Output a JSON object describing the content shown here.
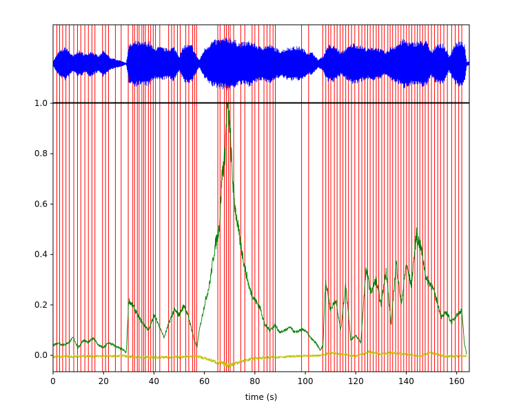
{
  "figure": {
    "xlabel": "time (s)"
  },
  "colors": {
    "waveform": "#0000ff",
    "markers": "#ff0000",
    "green_series": "#008000",
    "yellow_series": "#bfbf00",
    "axes": "#000000"
  },
  "chart_data": [
    {
      "type": "line",
      "title": "",
      "xlabel": "",
      "ylabel": "",
      "xlim": [
        0,
        165
      ],
      "ylim": [
        -1,
        1
      ],
      "yticks": false,
      "series": [
        {
          "color": "#0000ff",
          "values": "envelope",
          "envelope": [
            [
              0,
              0.06
            ],
            [
              2,
              0.3
            ],
            [
              5,
              0.45
            ],
            [
              8,
              0.2
            ],
            [
              10,
              0.35
            ],
            [
              13,
              0.25
            ],
            [
              15,
              0.35
            ],
            [
              18,
              0.2
            ],
            [
              20,
              0.35
            ],
            [
              23,
              0.15
            ],
            [
              26,
              0.1
            ],
            [
              28,
              0.05
            ],
            [
              29,
              0.02
            ],
            [
              30,
              0.5
            ],
            [
              33,
              0.6
            ],
            [
              35,
              0.55
            ],
            [
              38,
              0.6
            ],
            [
              40,
              0.4
            ],
            [
              42,
              0.45
            ],
            [
              45,
              0.4
            ],
            [
              48,
              0.45
            ],
            [
              50,
              0.2
            ],
            [
              52,
              0.5
            ],
            [
              55,
              0.5
            ],
            [
              57,
              0.2
            ],
            [
              58,
              0.1
            ],
            [
              60,
              0.4
            ],
            [
              63,
              0.6
            ],
            [
              66,
              0.65
            ],
            [
              70,
              0.7
            ],
            [
              74,
              0.55
            ],
            [
              78,
              0.6
            ],
            [
              82,
              0.45
            ],
            [
              86,
              0.5
            ],
            [
              90,
              0.35
            ],
            [
              94,
              0.45
            ],
            [
              98,
              0.45
            ],
            [
              101,
              0.3
            ],
            [
              103,
              0.3
            ],
            [
              105,
              0.1
            ],
            [
              107,
              0.2
            ],
            [
              109,
              0.5
            ],
            [
              112,
              0.45
            ],
            [
              114,
              0.3
            ],
            [
              117,
              0.45
            ],
            [
              119,
              0.55
            ],
            [
              121,
              0.5
            ],
            [
              125,
              0.4
            ],
            [
              128,
              0.45
            ],
            [
              132,
              0.3
            ],
            [
              134,
              0.45
            ],
            [
              136,
              0.5
            ],
            [
              139,
              0.65
            ],
            [
              142,
              0.55
            ],
            [
              145,
              0.6
            ],
            [
              148,
              0.6
            ],
            [
              150,
              0.3
            ],
            [
              152,
              0.55
            ],
            [
              155,
              0.5
            ],
            [
              157,
              0.2
            ],
            [
              159,
              0.5
            ],
            [
              161,
              0.6
            ],
            [
              163,
              0.55
            ],
            [
              164,
              0.05
            ]
          ]
        }
      ],
      "markers": [
        1.5,
        2.6,
        3.8,
        5.1,
        6.4,
        8.2,
        9.7,
        11.0,
        12.6,
        14.0,
        15.4,
        16.6,
        19.6,
        20.8,
        22.0,
        24.7,
        27.0,
        29.8,
        31.6,
        32.3,
        33.4,
        34.1,
        35.2,
        35.9,
        36.6,
        37.8,
        38.7,
        39.7,
        40.6,
        42.3,
        45.8,
        47.0,
        48.0,
        49.3,
        50.4,
        52.6,
        53.8,
        55.3,
        56.1,
        56.9,
        65.3,
        66.2,
        67.9,
        68.7,
        69.5,
        70.2,
        71.6,
        74.4,
        76.0,
        78.9,
        80.0,
        81.5,
        83.6,
        84.8,
        86.0,
        87.2,
        88.1,
        98.5,
        101.3,
        106.9,
        108.1,
        109.2,
        110.1,
        111.5,
        112.6,
        113.8,
        114.9,
        116.0,
        117.1,
        118.3,
        119.6,
        121.2,
        122.4,
        123.6,
        124.7,
        125.7,
        126.9,
        128.1,
        129.1,
        130.3,
        131.3,
        132.7,
        133.6,
        134.6,
        135.8,
        136.8,
        137.9,
        139.0,
        140.1,
        141.1,
        142.2,
        143.4,
        144.4,
        145.4,
        146.5,
        147.5,
        148.7,
        150.0,
        151.2,
        152.5,
        153.6,
        154.9,
        156.3,
        158.0,
        159.4,
        160.8,
        162.0
      ]
    },
    {
      "type": "line",
      "title": "",
      "xlabel": "time (s)",
      "ylabel": "",
      "xlim": [
        0,
        165
      ],
      "ylim": [
        -0.065,
        1.0
      ],
      "xticks": [
        0,
        20,
        40,
        60,
        80,
        100,
        120,
        140,
        160
      ],
      "yticks": [
        0.0,
        0.2,
        0.4,
        0.6,
        0.8,
        1.0
      ],
      "series": [
        {
          "color": "#008000",
          "values": [
            [
              0,
              0.04
            ],
            [
              2,
              0.05
            ],
            [
              4,
              0.04
            ],
            [
              6,
              0.05
            ],
            [
              8,
              0.07
            ],
            [
              10,
              0.03
            ],
            [
              12,
              0.06
            ],
            [
              14,
              0.05
            ],
            [
              16,
              0.07
            ],
            [
              18,
              0.04
            ],
            [
              20,
              0.03
            ],
            [
              22,
              0.05
            ],
            [
              24,
              0.04
            ],
            [
              26,
              0.03
            ],
            [
              28,
              0.02
            ],
            [
              29,
              0.01
            ],
            [
              30,
              0.22
            ],
            [
              32,
              0.19
            ],
            [
              34,
              0.15
            ],
            [
              36,
              0.12
            ],
            [
              38,
              0.1
            ],
            [
              40,
              0.16
            ],
            [
              42,
              0.12
            ],
            [
              44,
              0.07
            ],
            [
              46,
              0.13
            ],
            [
              48,
              0.18
            ],
            [
              50,
              0.16
            ],
            [
              52,
              0.2
            ],
            [
              54,
              0.14
            ],
            [
              56,
              0.06
            ],
            [
              57,
              0.03
            ],
            [
              58,
              0.1
            ],
            [
              60,
              0.2
            ],
            [
              62,
              0.28
            ],
            [
              64,
              0.42
            ],
            [
              66,
              0.52
            ],
            [
              67,
              0.72
            ],
            [
              68,
              0.78
            ],
            [
              69,
              0.99
            ],
            [
              70,
              0.92
            ],
            [
              71,
              0.72
            ],
            [
              72,
              0.6
            ],
            [
              74,
              0.46
            ],
            [
              76,
              0.35
            ],
            [
              78,
              0.26
            ],
            [
              80,
              0.22
            ],
            [
              82,
              0.19
            ],
            [
              84,
              0.12
            ],
            [
              86,
              0.1
            ],
            [
              88,
              0.12
            ],
            [
              90,
              0.09
            ],
            [
              92,
              0.1
            ],
            [
              94,
              0.11
            ],
            [
              96,
              0.09
            ],
            [
              98,
              0.1
            ],
            [
              100,
              0.1
            ],
            [
              102,
              0.07
            ],
            [
              104,
              0.05
            ],
            [
              106,
              0.02
            ],
            [
              107,
              0.04
            ],
            [
              108,
              0.3
            ],
            [
              110,
              0.18
            ],
            [
              112,
              0.22
            ],
            [
              114,
              0.1
            ],
            [
              116,
              0.28
            ],
            [
              117,
              0.18
            ],
            [
              118,
              0.06
            ],
            [
              120,
              0.08
            ],
            [
              122,
              0.05
            ],
            [
              124,
              0.34
            ],
            [
              126,
              0.25
            ],
            [
              128,
              0.3
            ],
            [
              130,
              0.2
            ],
            [
              132,
              0.34
            ],
            [
              134,
              0.12
            ],
            [
              136,
              0.37
            ],
            [
              138,
              0.2
            ],
            [
              140,
              0.36
            ],
            [
              142,
              0.28
            ],
            [
              144,
              0.48
            ],
            [
              146,
              0.42
            ],
            [
              148,
              0.3
            ],
            [
              150,
              0.28
            ],
            [
              152,
              0.22
            ],
            [
              154,
              0.15
            ],
            [
              156,
              0.17
            ],
            [
              158,
              0.13
            ],
            [
              160,
              0.16
            ],
            [
              162,
              0.18
            ],
            [
              163,
              0.05
            ],
            [
              164,
              0.0
            ]
          ]
        },
        {
          "color": "#bfbf00",
          "values": [
            [
              0,
              -0.005
            ],
            [
              10,
              -0.004
            ],
            [
              20,
              -0.003
            ],
            [
              28,
              -0.002
            ],
            [
              30,
              -0.006
            ],
            [
              40,
              -0.009
            ],
            [
              50,
              -0.007
            ],
            [
              57,
              -0.003
            ],
            [
              60,
              -0.012
            ],
            [
              66,
              -0.03
            ],
            [
              70,
              -0.04
            ],
            [
              74,
              -0.025
            ],
            [
              80,
              -0.012
            ],
            [
              90,
              -0.006
            ],
            [
              100,
              -0.003
            ],
            [
              106,
              0.0
            ],
            [
              110,
              0.01
            ],
            [
              115,
              0.005
            ],
            [
              120,
              -0.004
            ],
            [
              125,
              0.012
            ],
            [
              130,
              0.005
            ],
            [
              135,
              0.01
            ],
            [
              140,
              0.005
            ],
            [
              145,
              -0.004
            ],
            [
              150,
              0.01
            ],
            [
              155,
              -0.004
            ],
            [
              160,
              -0.003
            ],
            [
              164,
              -0.002
            ]
          ]
        }
      ],
      "markers_shared": true
    }
  ]
}
